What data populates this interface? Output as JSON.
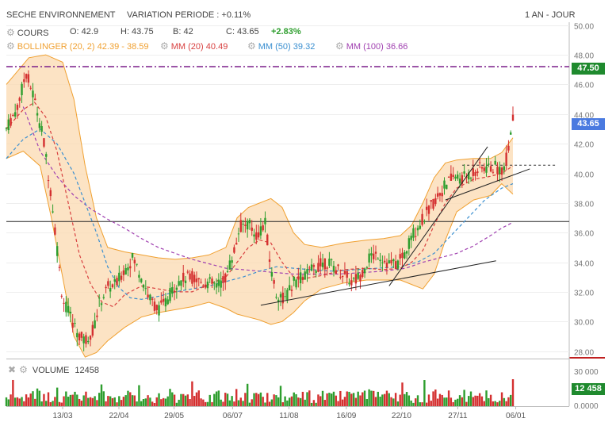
{
  "header": {
    "instrument": "SECHE ENVIRONNEMENT",
    "variation": "VARIATION PERIODE : +0.11%",
    "period": "1 AN - JOUR"
  },
  "legend": {
    "cours": {
      "label": "COURS",
      "o": "O: 42.9",
      "h": "H: 43.75",
      "b": "B: 42",
      "c": "C: 43.65",
      "chg": "+2.83%"
    },
    "bollinger": {
      "label": "BOLLINGER (20, 2)",
      "value": "42.39 - 38.59",
      "color": "#f0a030"
    },
    "mm20": {
      "label": "MM (20)",
      "value": "40.49",
      "color": "#d84040"
    },
    "mm50": {
      "label": "MM (50)",
      "value": "39.32",
      "color": "#3a8fd0"
    },
    "mm100": {
      "label": "MM (100)",
      "value": "36.66",
      "color": "#a040b0"
    }
  },
  "price_tags": {
    "level": "47.50",
    "last": "43.65",
    "volume_last": "12 458"
  },
  "volume_panel": {
    "label": "VOLUME",
    "value": "12458"
  },
  "colors": {
    "up": "#2e9e2e",
    "down": "#d43030",
    "band_fill": "#fbd9b0",
    "band_line": "#f0a030",
    "purple_line": "#7b1f8a",
    "last_tag": "#4a7ae0"
  },
  "chart_data": {
    "type": "candlestick",
    "x_ticks": [
      "13/03",
      "22/04",
      "29/05",
      "06/07",
      "11/08",
      "16/09",
      "22/10",
      "27/11",
      "06/01"
    ],
    "y_ticks": [
      "28.00",
      "30.00",
      "32.00",
      "34.00",
      "36.00",
      "38.00",
      "40.00",
      "42.00",
      "44.00",
      "46.00",
      "48.00",
      "50.00"
    ],
    "ylim": [
      27.5,
      50.2
    ],
    "volume_ticks": [
      "0.0000",
      "30 000"
    ],
    "horizontal_levels": [
      47.2,
      36.75
    ],
    "resistance_dashed": 40.55,
    "trendlines": [
      {
        "from": [
          0.452,
          31.1
        ],
        "to": [
          0.87,
          34.1
        ]
      },
      {
        "from": [
          0.68,
          32.4
        ],
        "to": [
          0.855,
          41.8
        ]
      },
      {
        "from": [
          0.78,
          38.2
        ],
        "to": [
          0.93,
          40.3
        ]
      }
    ],
    "price_path": [
      [
        0.0,
        43.0
      ],
      [
        0.02,
        44.5
      ],
      [
        0.035,
        46.8
      ],
      [
        0.05,
        45.0
      ],
      [
        0.065,
        42.5
      ],
      [
        0.08,
        38.5
      ],
      [
        0.09,
        35.0
      ],
      [
        0.1,
        31.5
      ],
      [
        0.115,
        30.2
      ],
      [
        0.13,
        29.0
      ],
      [
        0.14,
        28.7
      ],
      [
        0.155,
        29.5
      ],
      [
        0.165,
        31.2
      ],
      [
        0.18,
        32.3
      ],
      [
        0.195,
        32.5
      ],
      [
        0.21,
        33.5
      ],
      [
        0.225,
        34.3
      ],
      [
        0.24,
        33.0
      ],
      [
        0.255,
        31.5
      ],
      [
        0.27,
        30.8
      ],
      [
        0.285,
        31.4
      ],
      [
        0.3,
        32.5
      ],
      [
        0.315,
        32.9
      ],
      [
        0.33,
        33.0
      ],
      [
        0.345,
        32.7
      ],
      [
        0.36,
        32.6
      ],
      [
        0.375,
        32.4
      ],
      [
        0.39,
        33.0
      ],
      [
        0.405,
        34.8
      ],
      [
        0.415,
        36.4
      ],
      [
        0.43,
        36.6
      ],
      [
        0.445,
        35.8
      ],
      [
        0.46,
        36.6
      ],
      [
        0.47,
        33.5
      ],
      [
        0.48,
        31.8
      ],
      [
        0.495,
        31.5
      ],
      [
        0.51,
        32.6
      ],
      [
        0.525,
        33.0
      ],
      [
        0.54,
        33.4
      ],
      [
        0.555,
        33.8
      ],
      [
        0.57,
        34.0
      ],
      [
        0.585,
        33.6
      ],
      [
        0.6,
        33.2
      ],
      [
        0.615,
        32.6
      ],
      [
        0.63,
        33.2
      ],
      [
        0.645,
        34.3
      ],
      [
        0.66,
        34.6
      ],
      [
        0.675,
        34.0
      ],
      [
        0.69,
        33.8
      ],
      [
        0.705,
        34.3
      ],
      [
        0.72,
        35.8
      ],
      [
        0.735,
        36.6
      ],
      [
        0.75,
        37.5
      ],
      [
        0.765,
        38.4
      ],
      [
        0.78,
        39.2
      ],
      [
        0.795,
        39.8
      ],
      [
        0.81,
        39.6
      ],
      [
        0.825,
        40.0
      ],
      [
        0.84,
        40.3
      ],
      [
        0.855,
        40.4
      ],
      [
        0.87,
        40.4
      ],
      [
        0.885,
        40.2
      ],
      [
        0.9,
        43.7
      ]
    ],
    "bollinger_upper": [
      [
        0.0,
        46.0
      ],
      [
        0.04,
        47.8
      ],
      [
        0.07,
        48.0
      ],
      [
        0.1,
        47.5
      ],
      [
        0.12,
        45.0
      ],
      [
        0.14,
        40.5
      ],
      [
        0.16,
        37.0
      ],
      [
        0.18,
        35.0
      ],
      [
        0.21,
        34.7
      ],
      [
        0.24,
        34.5
      ],
      [
        0.27,
        34.3
      ],
      [
        0.3,
        34.2
      ],
      [
        0.33,
        34.3
      ],
      [
        0.36,
        34.5
      ],
      [
        0.39,
        35.0
      ],
      [
        0.41,
        37.0
      ],
      [
        0.43,
        37.7
      ],
      [
        0.45,
        38.0
      ],
      [
        0.47,
        38.3
      ],
      [
        0.49,
        37.7
      ],
      [
        0.51,
        36.0
      ],
      [
        0.53,
        35.2
      ],
      [
        0.56,
        35.0
      ],
      [
        0.6,
        35.3
      ],
      [
        0.64,
        35.5
      ],
      [
        0.67,
        35.6
      ],
      [
        0.7,
        35.8
      ],
      [
        0.72,
        36.5
      ],
      [
        0.74,
        38.0
      ],
      [
        0.76,
        39.7
      ],
      [
        0.78,
        40.7
      ],
      [
        0.8,
        40.9
      ],
      [
        0.83,
        41.0
      ],
      [
        0.86,
        41.0
      ],
      [
        0.88,
        41.4
      ],
      [
        0.9,
        42.4
      ]
    ],
    "bollinger_lower": [
      [
        0.0,
        41.0
      ],
      [
        0.03,
        41.5
      ],
      [
        0.06,
        40.5
      ],
      [
        0.08,
        37.0
      ],
      [
        0.1,
        33.0
      ],
      [
        0.12,
        29.0
      ],
      [
        0.14,
        27.6
      ],
      [
        0.16,
        27.9
      ],
      [
        0.18,
        28.7
      ],
      [
        0.21,
        29.6
      ],
      [
        0.24,
        30.3
      ],
      [
        0.27,
        30.6
      ],
      [
        0.3,
        30.8
      ],
      [
        0.33,
        31.0
      ],
      [
        0.36,
        31.3
      ],
      [
        0.39,
        30.9
      ],
      [
        0.41,
        30.5
      ],
      [
        0.43,
        30.3
      ],
      [
        0.45,
        30.1
      ],
      [
        0.47,
        29.8
      ],
      [
        0.49,
        30.0
      ],
      [
        0.51,
        30.6
      ],
      [
        0.53,
        31.4
      ],
      [
        0.56,
        32.2
      ],
      [
        0.6,
        32.6
      ],
      [
        0.64,
        32.8
      ],
      [
        0.67,
        32.8
      ],
      [
        0.7,
        32.8
      ],
      [
        0.72,
        32.5
      ],
      [
        0.74,
        32.2
      ],
      [
        0.76,
        33.2
      ],
      [
        0.78,
        35.5
      ],
      [
        0.8,
        37.4
      ],
      [
        0.83,
        38.2
      ],
      [
        0.86,
        38.5
      ],
      [
        0.88,
        39.3
      ],
      [
        0.9,
        38.6
      ]
    ],
    "mm20": [
      [
        0.0,
        43.0
      ],
      [
        0.03,
        44.3
      ],
      [
        0.05,
        44.8
      ],
      [
        0.07,
        43.8
      ],
      [
        0.09,
        41.5
      ],
      [
        0.11,
        38.0
      ],
      [
        0.13,
        34.5
      ],
      [
        0.15,
        32.5
      ],
      [
        0.17,
        31.3
      ],
      [
        0.19,
        31.0
      ],
      [
        0.21,
        31.8
      ],
      [
        0.24,
        32.4
      ],
      [
        0.27,
        32.2
      ],
      [
        0.3,
        32.0
      ],
      [
        0.33,
        32.0
      ],
      [
        0.36,
        32.5
      ],
      [
        0.39,
        33.0
      ],
      [
        0.41,
        34.0
      ],
      [
        0.43,
        35.0
      ],
      [
        0.45,
        35.5
      ],
      [
        0.47,
        35.3
      ],
      [
        0.49,
        34.0
      ],
      [
        0.51,
        33.0
      ],
      [
        0.53,
        32.9
      ],
      [
        0.56,
        33.1
      ],
      [
        0.6,
        33.5
      ],
      [
        0.64,
        33.6
      ],
      [
        0.67,
        33.5
      ],
      [
        0.7,
        33.6
      ],
      [
        0.72,
        34.0
      ],
      [
        0.74,
        34.8
      ],
      [
        0.76,
        36.5
      ],
      [
        0.78,
        38.0
      ],
      [
        0.8,
        39.0
      ],
      [
        0.83,
        39.6
      ],
      [
        0.86,
        39.8
      ],
      [
        0.88,
        40.0
      ],
      [
        0.9,
        40.5
      ]
    ],
    "mm50": [
      [
        0.0,
        41.0
      ],
      [
        0.03,
        42.3
      ],
      [
        0.06,
        43.0
      ],
      [
        0.09,
        42.0
      ],
      [
        0.12,
        40.0
      ],
      [
        0.14,
        38.0
      ],
      [
        0.16,
        36.0
      ],
      [
        0.18,
        33.7
      ],
      [
        0.2,
        32.3
      ],
      [
        0.22,
        31.6
      ],
      [
        0.24,
        31.5
      ],
      [
        0.27,
        31.7
      ],
      [
        0.3,
        32.0
      ],
      [
        0.33,
        32.2
      ],
      [
        0.36,
        32.4
      ],
      [
        0.39,
        32.7
      ],
      [
        0.42,
        33.0
      ],
      [
        0.45,
        33.4
      ],
      [
        0.48,
        33.7
      ],
      [
        0.51,
        33.6
      ],
      [
        0.54,
        33.5
      ],
      [
        0.58,
        33.4
      ],
      [
        0.62,
        33.5
      ],
      [
        0.66,
        33.6
      ],
      [
        0.7,
        33.7
      ],
      [
        0.73,
        34.0
      ],
      [
        0.76,
        34.6
      ],
      [
        0.79,
        35.8
      ],
      [
        0.82,
        37.0
      ],
      [
        0.85,
        38.2
      ],
      [
        0.88,
        39.0
      ],
      [
        0.9,
        39.3
      ]
    ],
    "mm100": [
      [
        0.03,
        44.5
      ],
      [
        0.06,
        41.5
      ],
      [
        0.09,
        39.8
      ],
      [
        0.12,
        38.5
      ],
      [
        0.15,
        37.6
      ],
      [
        0.18,
        36.9
      ],
      [
        0.21,
        36.3
      ],
      [
        0.24,
        35.6
      ],
      [
        0.27,
        35.0
      ],
      [
        0.3,
        34.6
      ],
      [
        0.33,
        34.2
      ],
      [
        0.36,
        33.9
      ],
      [
        0.39,
        33.6
      ],
      [
        0.42,
        33.5
      ],
      [
        0.45,
        33.4
      ],
      [
        0.48,
        33.3
      ],
      [
        0.51,
        33.2
      ],
      [
        0.55,
        33.2
      ],
      [
        0.59,
        33.2
      ],
      [
        0.63,
        33.3
      ],
      [
        0.67,
        33.4
      ],
      [
        0.71,
        33.6
      ],
      [
        0.74,
        34.0
      ],
      [
        0.77,
        34.3
      ],
      [
        0.8,
        34.6
      ],
      [
        0.83,
        35.1
      ],
      [
        0.86,
        35.8
      ],
      [
        0.88,
        36.3
      ],
      [
        0.9,
        36.7
      ]
    ]
  }
}
